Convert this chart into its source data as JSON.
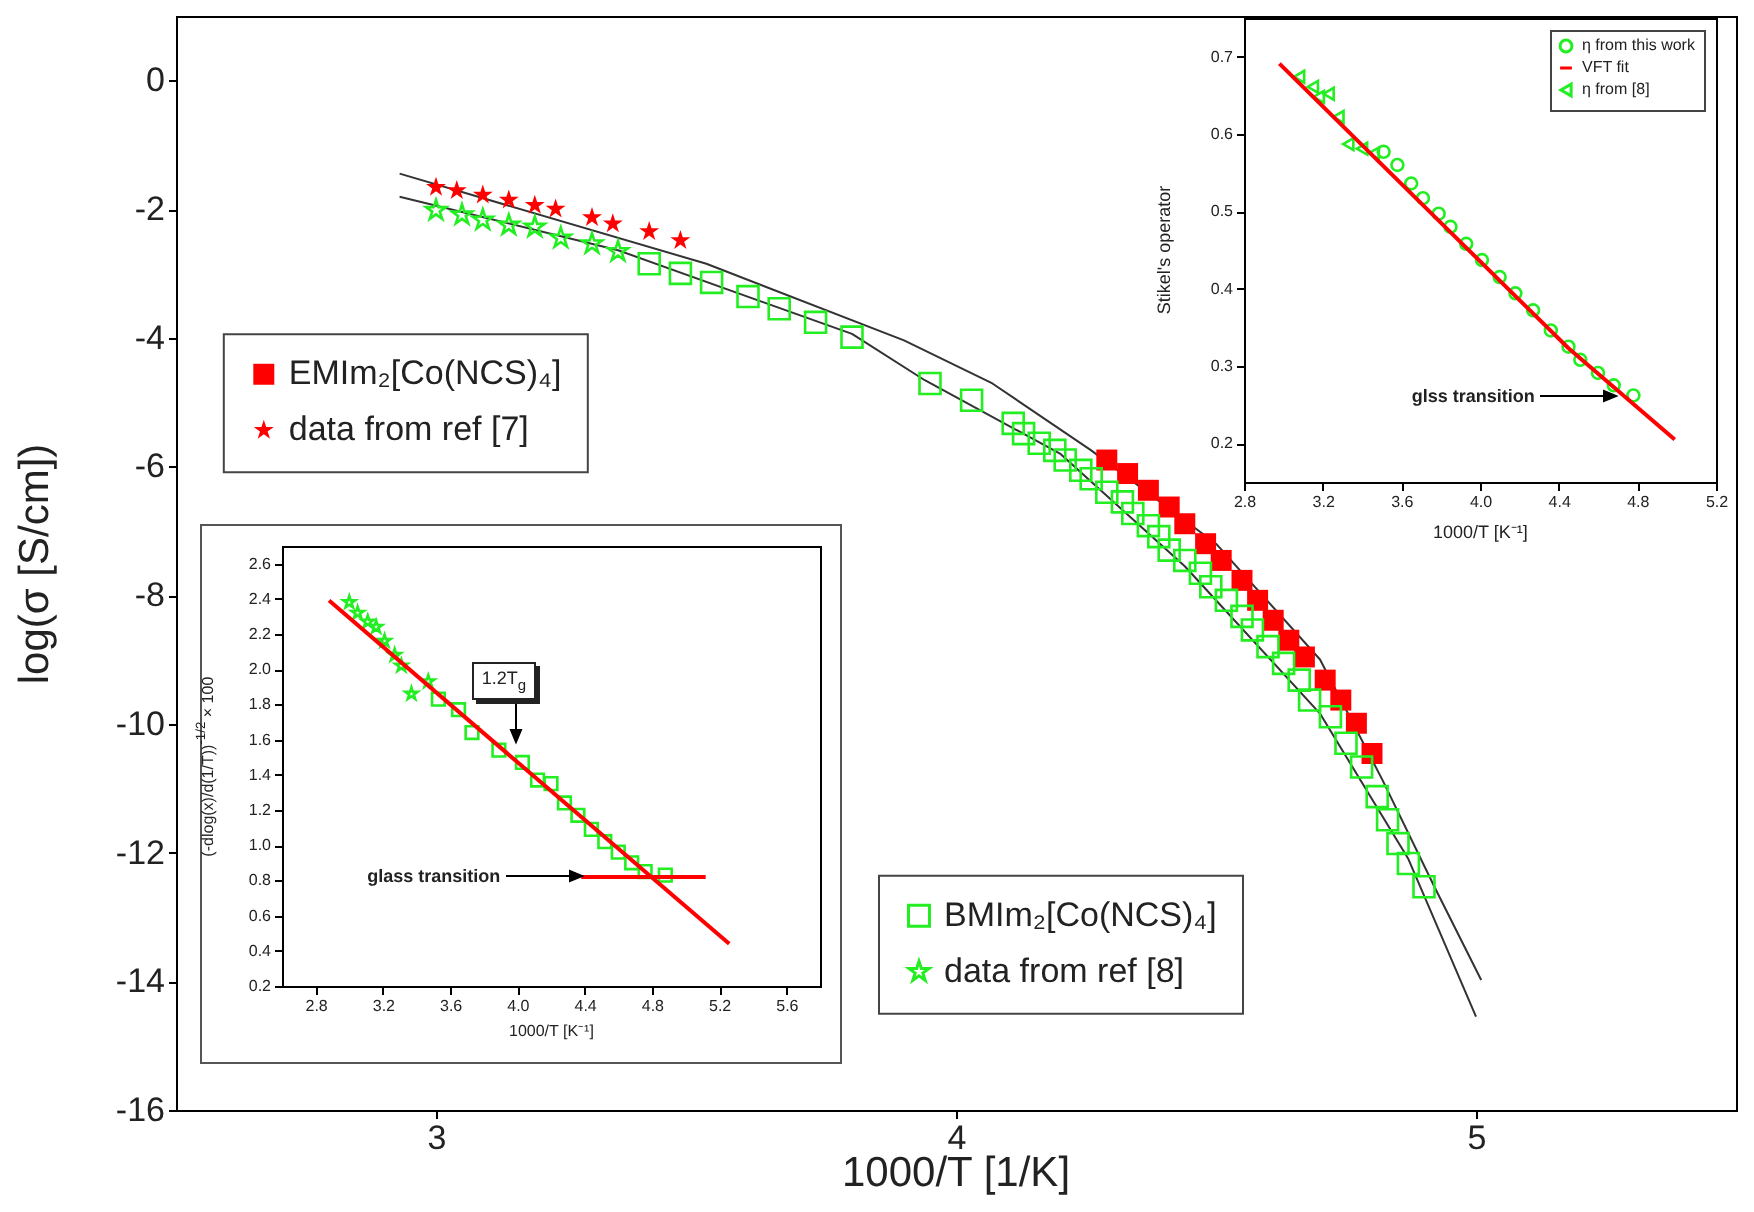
{
  "chart_data": [
    {
      "type": "scatter",
      "xlabel": "1000/T [1/K]",
      "ylabel": "log(σ [S/cm])",
      "xlim": [
        2.5,
        5.5
      ],
      "ylim": [
        -16,
        1
      ],
      "xticks": [
        3,
        4,
        5
      ],
      "yticks": [
        0,
        -2,
        -4,
        -6,
        -8,
        -10,
        -12,
        -14,
        -16
      ],
      "legend": "left",
      "series": [
        {
          "name": "EMIm₂[Co(NCS)₄]",
          "color": "#ff0000",
          "marker": "square",
          "x": [
            4.29,
            4.33,
            4.37,
            4.41,
            4.44,
            4.48,
            4.51,
            4.55,
            4.58,
            4.61,
            4.64,
            4.67,
            4.71,
            4.74,
            4.77,
            4.8
          ],
          "values": [
            -5.9,
            -6.11,
            -6.37,
            -6.63,
            -6.89,
            -7.2,
            -7.46,
            -7.77,
            -8.08,
            -8.39,
            -8.7,
            -8.96,
            -9.32,
            -9.63,
            -9.99,
            -10.46
          ]
        },
        {
          "name": "data from ref [7]",
          "color": "#ff0000",
          "marker": "star",
          "x": [
            3.0,
            3.04,
            3.09,
            3.14,
            3.19,
            3.23,
            3.3,
            3.34,
            3.41,
            3.47
          ],
          "values": [
            -1.66,
            -1.71,
            -1.78,
            -1.86,
            -1.94,
            -2.0,
            -2.13,
            -2.23,
            -2.35,
            -2.49
          ]
        },
        {
          "name": "BMIm₂[Co(NCS)₄]",
          "color": "#22ee22",
          "marker": "square",
          "x": [
            3.41,
            3.47,
            3.53,
            3.6,
            3.66,
            3.73,
            3.8,
            3.95,
            4.03,
            4.11,
            4.13,
            4.16,
            4.19,
            4.21,
            4.24,
            4.26,
            4.29,
            4.32,
            4.34,
            4.37,
            4.39,
            4.41,
            4.44,
            4.47,
            4.49,
            4.52,
            4.55,
            4.57,
            4.6,
            4.63,
            4.66,
            4.68,
            4.72,
            4.75,
            4.78,
            4.81,
            4.83,
            4.85,
            4.87,
            4.9
          ],
          "values": [
            -2.85,
            -3.0,
            -3.14,
            -3.36,
            -3.55,
            -3.76,
            -3.99,
            -4.71,
            -4.97,
            -5.33,
            -5.49,
            -5.64,
            -5.75,
            -5.9,
            -6.06,
            -6.19,
            -6.4,
            -6.55,
            -6.73,
            -6.92,
            -7.09,
            -7.3,
            -7.46,
            -7.66,
            -7.87,
            -8.08,
            -8.33,
            -8.54,
            -8.8,
            -9.06,
            -9.32,
            -9.63,
            -9.89,
            -10.3,
            -10.67,
            -11.13,
            -11.49,
            -11.86,
            -12.17,
            -12.53
          ]
        },
        {
          "name": "data from ref [8]",
          "color": "#22ee22",
          "marker": "star",
          "x": [
            3.0,
            3.05,
            3.09,
            3.14,
            3.19,
            3.24,
            3.3,
            3.35
          ],
          "values": [
            -2.02,
            -2.09,
            -2.17,
            -2.25,
            -2.28,
            -2.45,
            -2.54,
            -2.66
          ]
        },
        {
          "type": "line",
          "color": "#333333",
          "x": [
            2.93,
            3.52,
            3.9,
            4.07,
            4.26,
            4.5,
            4.7,
            4.82,
            4.92,
            5.01
          ],
          "values": [
            -1.45,
            -2.85,
            -4.04,
            -4.71,
            -5.75,
            -7.2,
            -9.0,
            -10.87,
            -12.53,
            -13.98
          ]
        },
        {
          "type": "line",
          "color": "#333333",
          "x": [
            2.93,
            3.35,
            3.8,
            3.94,
            4.2,
            4.44,
            4.7,
            4.87,
            5.0
          ],
          "values": [
            -1.81,
            -2.64,
            -3.94,
            -4.66,
            -5.8,
            -7.55,
            -9.84,
            -12.1,
            -14.55
          ]
        }
      ]
    },
    {
      "type": "scatter",
      "xlabel": "1000/T [K⁻¹]",
      "ylabel": "(-dlog(x)/d(1/T))$^{-1/2}$ × 100",
      "xlim": [
        2.6,
        5.8
      ],
      "ylim": [
        0.2,
        2.7
      ],
      "xticks": [
        2.8,
        3.2,
        3.6,
        {
          "value": 4,
          "label": "4.0"
        },
        4.4,
        4.8,
        5.2,
        5.6
      ],
      "yticks": [
        0.2,
        0.4,
        0.6,
        0.8,
        {
          "value": 1,
          "label": "1.0"
        },
        1.2,
        1.4,
        1.6,
        1.8,
        {
          "value": 2,
          "label": "2.0"
        },
        2.2,
        2.4,
        2.6
      ],
      "annotations": [
        {
          "text": "1.2T$_{g}$",
          "x": 3.99,
          "y": 1.56
        },
        {
          "text": "glass transition",
          "x": 4.38,
          "y": 0.82
        }
      ],
      "series": [
        {
          "color": "#22ee22",
          "marker": "star",
          "x": [
            3.0,
            3.05,
            3.11,
            3.16,
            3.21,
            3.27,
            3.31,
            3.37,
            3.47
          ],
          "values": [
            2.38,
            2.32,
            2.27,
            2.24,
            2.16,
            2.08,
            2.02,
            1.86,
            1.93
          ]
        },
        {
          "color": "#22ee22",
          "marker": "square",
          "x": [
            3.53,
            3.65,
            3.73,
            3.89,
            4.03,
            4.12,
            4.2,
            4.28,
            4.36,
            4.44,
            4.52,
            4.6,
            4.68,
            4.76,
            4.88
          ],
          "values": [
            1.83,
            1.77,
            1.64,
            1.54,
            1.47,
            1.37,
            1.35,
            1.24,
            1.17,
            1.09,
            1.02,
            0.96,
            0.9,
            0.85,
            0.83
          ]
        },
        {
          "type": "line",
          "color": "#ff0000",
          "x": [
            2.88,
            5.26
          ],
          "values": [
            2.39,
            0.44
          ]
        },
        {
          "type": "line",
          "color": "#ff0000",
          "x": [
            4.38,
            5.12
          ],
          "values": [
            0.82,
            0.82
          ]
        }
      ]
    },
    {
      "type": "scatter",
      "xlabel": "1000/T [K⁻¹]",
      "ylabel": "Stikel's operator",
      "xlim": [
        2.8,
        5.2
      ],
      "ylim": [
        0.15,
        0.75
      ],
      "xticks": [
        2.8,
        3.2,
        3.6,
        {
          "value": 4,
          "label": "4.0"
        },
        4.4,
        4.8,
        5.2
      ],
      "yticks": [
        0.2,
        0.3,
        0.4,
        0.5,
        0.6,
        0.7
      ],
      "legend": "top right",
      "annotations": [
        {
          "text": "glss transition",
          "x": 4.69,
          "y": 0.26
        }
      ],
      "series": [
        {
          "name": "η from this work",
          "color": "#22ee22",
          "marker": "circle",
          "x": [
            3.51,
            3.58,
            3.65,
            3.71,
            3.79,
            3.85,
            3.93,
            4.01,
            4.1,
            4.18,
            4.27,
            4.36,
            4.45,
            4.51,
            4.6,
            4.68,
            4.78
          ],
          "values": [
            0.577,
            0.56,
            0.536,
            0.517,
            0.497,
            0.48,
            0.458,
            0.437,
            0.415,
            0.394,
            0.372,
            0.346,
            0.325,
            0.308,
            0.291,
            0.275,
            0.262
          ]
        },
        {
          "name": "VFT fit",
          "type": "line",
          "color": "#ff0000",
          "x": [
            2.98,
            3.91,
            4.45,
            4.99
          ],
          "values": [
            0.691,
            0.458,
            0.323,
            0.205
          ]
        },
        {
          "name": "η from [8]",
          "color": "#22ee22",
          "marker": "triangle",
          "x": [
            3.08,
            3.15,
            3.18,
            3.23,
            3.28,
            3.33,
            3.4,
            3.46
          ],
          "values": [
            0.674,
            0.661,
            0.648,
            0.652,
            0.622,
            0.587,
            0.581,
            0.575
          ]
        }
      ]
    }
  ]
}
